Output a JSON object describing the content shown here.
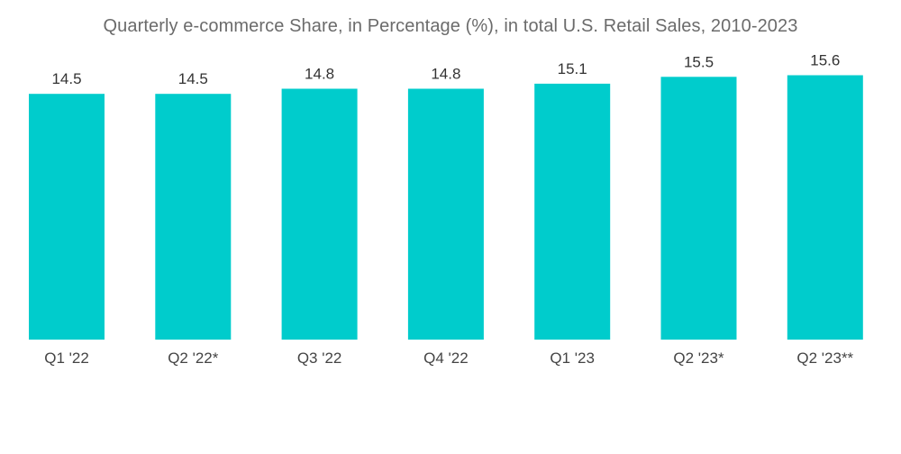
{
  "chart_data": {
    "type": "bar",
    "title": "Quarterly e-commerce Share, in Percentage (%), in total U.S. Retail Sales, 2010-2023",
    "categories": [
      "Q1 '22",
      "Q2 '22*",
      "Q3 '22",
      "Q4 '22",
      "Q1 '23",
      "Q2 '23*",
      "Q2 '23**"
    ],
    "values": [
      14.5,
      14.5,
      14.8,
      14.8,
      15.1,
      15.5,
      15.6
    ],
    "value_labels": [
      "14.5",
      "14.5",
      "14.8",
      "14.8",
      "15.1",
      "15.5",
      "15.6"
    ],
    "xlabel": "",
    "ylabel": "",
    "ylim": [
      0,
      18.6
    ],
    "grid": false,
    "legend": "none",
    "bar_color": "#00CCCC"
  }
}
